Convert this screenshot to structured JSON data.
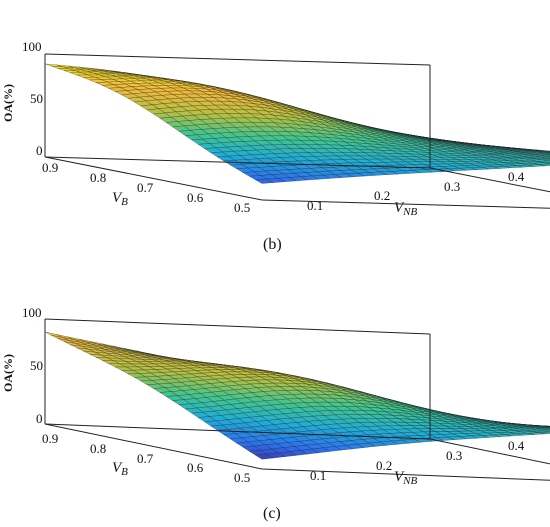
{
  "chart_data": [
    {
      "type": "surface",
      "panel_label": "(b)",
      "xlabel": "V_NB",
      "ylabel": "V_B",
      "zlabel": "OA(%)",
      "x_ticks": [
        "0.1",
        "0.2",
        "0.3",
        "0.4"
      ],
      "y_ticks": [
        "0.9",
        "0.8",
        "0.7",
        "0.6",
        "0.5"
      ],
      "z_ticks": [
        "0",
        "50",
        "100"
      ],
      "xlim": [
        0.05,
        0.45
      ],
      "ylim": [
        0.5,
        0.95
      ],
      "zlim": [
        0,
        100
      ],
      "grid": true,
      "colormap": [
        "#3e26a8",
        "#2b73f0",
        "#1eaed6",
        "#42c68c",
        "#b6c040",
        "#f1b93a",
        "#f9fb15"
      ],
      "corners": {
        "vnb_min_vb_max": 82,
        "vnb_max_vb_max": 26,
        "vnb_min_vb_min": 15,
        "vnb_max_vb_min": 50
      },
      "peak": {
        "vnb": 0.15,
        "vb": 0.8,
        "oa": 95
      }
    },
    {
      "type": "surface",
      "panel_label": "(c)",
      "xlabel": "V_NB",
      "ylabel": "V_B",
      "zlabel": "OA(%)",
      "x_ticks": [
        "0.1",
        "0.2",
        "0.3",
        "0.4"
      ],
      "y_ticks": [
        "0.9",
        "0.8",
        "0.7",
        "0.6",
        "0.5"
      ],
      "z_ticks": [
        "0",
        "50",
        "100"
      ],
      "xlim": [
        0.05,
        0.45
      ],
      "ylim": [
        0.5,
        0.95
      ],
      "zlim": [
        0,
        100
      ],
      "grid": true,
      "colormap": [
        "#3e26a8",
        "#2b73f0",
        "#1eaed6",
        "#42c68c",
        "#b6c040",
        "#f1b93a",
        "#f9fb15"
      ],
      "corners": {
        "vnb_min_vb_max": 85,
        "vnb_max_vb_max": 5,
        "vnb_min_vb_min": 8,
        "vnb_max_vb_min": 55
      },
      "peak": {
        "vnb": 0.2,
        "vb": 0.75,
        "oa": 100
      }
    }
  ]
}
